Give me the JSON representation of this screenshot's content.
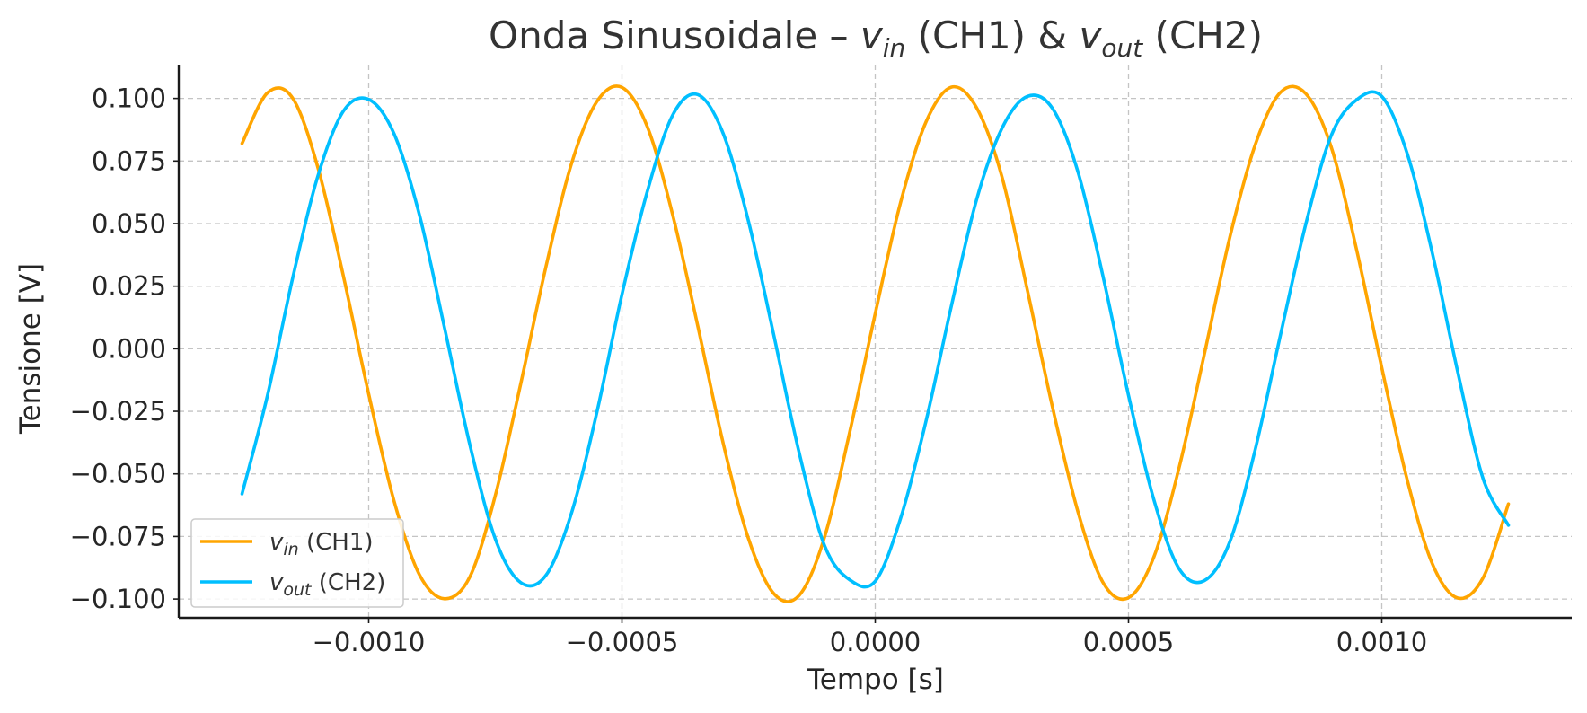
{
  "colors": {
    "vin": "#FFA500",
    "vout": "#00BFFF"
  },
  "chart_data": {
    "type": "line",
    "title": {
      "prefix": "Onda Sinusoidale – ",
      "v1": "v",
      "v1_sub": "in",
      "mid": " (CH1) & ",
      "v2": "v",
      "v2_sub": "out",
      "suffix": " (CH2)"
    },
    "xlabel": "Tempo [s]",
    "ylabel": "Tensione [V]",
    "xlim": [
      -0.001375,
      0.001375
    ],
    "ylim": [
      -0.1075,
      0.1135
    ],
    "xticks": [
      -0.001,
      -0.0005,
      0.0,
      0.0005,
      0.001
    ],
    "xtick_labels": [
      "−0.0010",
      "−0.0005",
      "0.0000",
      "0.0005",
      "0.0010"
    ],
    "yticks": [
      0.1,
      0.075,
      0.05,
      0.025,
      0.0,
      -0.025,
      -0.05,
      -0.075,
      -0.1
    ],
    "ytick_labels": [
      "0.100",
      "0.075",
      "0.050",
      "0.025",
      "0.000",
      "−0.025",
      "−0.050",
      "−0.075",
      "−0.100"
    ],
    "grid": true,
    "legend_position": "lower-left",
    "series": [
      {
        "key": "vin",
        "name": "v",
        "name_sub": "in",
        "name_suffix": " (CH1)",
        "color": "#FFA500",
        "x": [
          -0.00125,
          -0.0012,
          -0.00115,
          -0.0011,
          -0.00105,
          -0.001,
          -0.00095,
          -0.0009,
          -0.00085,
          -0.0008,
          -0.00075,
          -0.0007,
          -0.00065,
          -0.0006,
          -0.00055,
          -0.0005,
          -0.00045,
          -0.0004,
          -0.00035,
          -0.0003,
          -0.00025,
          -0.0002,
          -0.00015,
          -0.0001,
          -5e-05,
          0.0,
          5e-05,
          0.0001,
          0.00015,
          0.0002,
          0.00025,
          0.0003,
          0.00035,
          0.0004,
          0.00045,
          0.0005,
          0.00055,
          0.0006,
          0.00065,
          0.0007,
          0.00075,
          0.0008,
          0.00085,
          0.0009,
          0.00095,
          0.001,
          0.00105,
          0.0011,
          0.00115,
          0.0012,
          0.00125
        ],
        "y": [
          0.082,
          0.1022,
          0.1001,
          0.0722,
          0.0291,
          -0.0181,
          -0.0608,
          -0.0902,
          -0.0999,
          -0.091,
          -0.0586,
          -0.0141,
          0.0328,
          0.0737,
          0.0986,
          0.1044,
          0.0887,
          0.0536,
          0.0088,
          -0.0379,
          -0.076,
          -0.0979,
          -0.0985,
          -0.0752,
          -0.033,
          0.014,
          0.0584,
          0.0905,
          0.1045,
          0.0963,
          0.0688,
          0.0237,
          -0.0234,
          -0.065,
          -0.0935,
          -0.0995,
          -0.0832,
          -0.0474,
          -0.0019,
          0.0445,
          0.0814,
          0.1024,
          0.1019,
          0.0807,
          0.0398,
          -0.0076,
          -0.0522,
          -0.086,
          -0.0996,
          -0.0915,
          -0.062
        ]
      },
      {
        "key": "vout",
        "name": "v",
        "name_sub": "out",
        "name_suffix": " (CH2)",
        "color": "#00BFFF",
        "x": [
          -0.00125,
          -0.0012,
          -0.00115,
          -0.0011,
          -0.00105,
          -0.001,
          -0.00095,
          -0.0009,
          -0.00085,
          -0.0008,
          -0.00075,
          -0.0007,
          -0.00065,
          -0.0006,
          -0.00055,
          -0.0005,
          -0.00045,
          -0.0004,
          -0.00035,
          -0.0003,
          -0.00025,
          -0.0002,
          -0.00015,
          -0.0001,
          -5e-05,
          0.0,
          5e-05,
          0.0001,
          0.00015,
          0.0002,
          0.00025,
          0.0003,
          0.00035,
          0.0004,
          0.00045,
          0.0005,
          0.00055,
          0.0006,
          0.00065,
          0.0007,
          0.00075,
          0.0008,
          0.00085,
          0.0009,
          0.00095,
          0.001,
          0.00105,
          0.0011,
          0.00115,
          0.0012,
          0.00125
        ],
        "y": [
          -0.058,
          -0.0188,
          0.0283,
          0.0692,
          0.0949,
          0.0996,
          0.0859,
          0.0536,
          0.0081,
          -0.0386,
          -0.076,
          -0.0934,
          -0.0905,
          -0.0659,
          -0.0258,
          0.0217,
          0.0628,
          0.0933,
          0.1015,
          0.0859,
          0.0507,
          0.0052,
          -0.0417,
          -0.0787,
          -0.0924,
          -0.0929,
          -0.0678,
          -0.0291,
          0.0168,
          0.0595,
          0.088,
          0.1008,
          0.096,
          0.0708,
          0.0286,
          -0.0186,
          -0.0603,
          -0.0879,
          -0.0926,
          -0.0771,
          -0.0404,
          0.0055,
          0.0498,
          0.0851,
          0.0994,
          0.1008,
          0.0781,
          0.038,
          -0.0093,
          -0.0519,
          -0.0705
        ]
      }
    ]
  }
}
